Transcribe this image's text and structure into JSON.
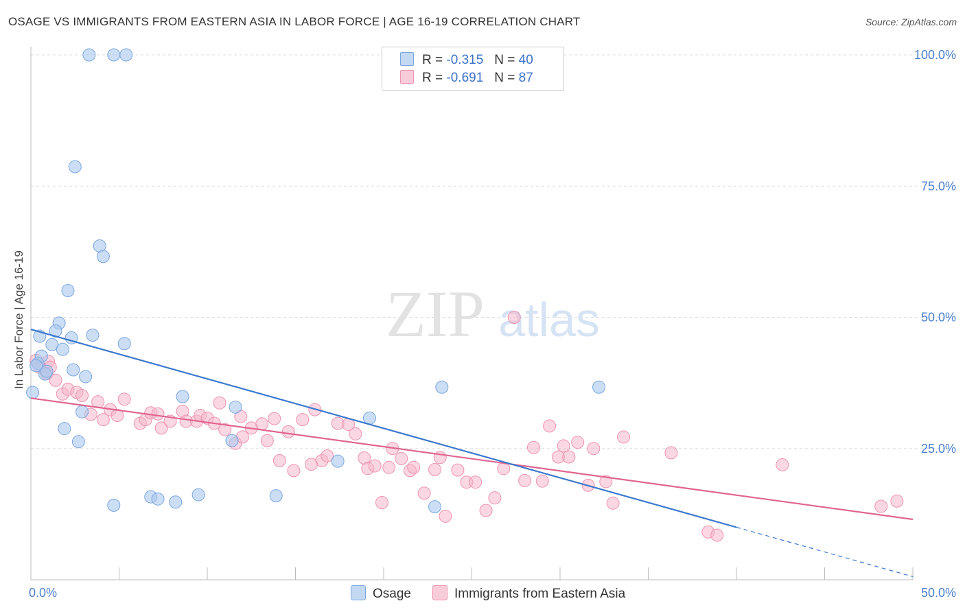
{
  "header": {
    "title": "OSAGE VS IMMIGRANTS FROM EASTERN ASIA IN LABOR FORCE | AGE 16-19 CORRELATION CHART",
    "source": "Source: ZipAtlas.com"
  },
  "watermark": {
    "zip": "ZIP",
    "atlas": "atlas"
  },
  "legend": [
    {
      "r_label": "R =",
      "r_value": "-0.315",
      "n_label": "N =",
      "n_value": "40"
    },
    {
      "r_label": "R =",
      "r_value": "-0.691",
      "n_label": "N =",
      "n_value": "87"
    }
  ],
  "bottom_legend": [
    "Osage",
    "Immigrants from Eastern Asia"
  ],
  "colors": {
    "osage_fill": "#aac8ef",
    "osage_stroke": "#7aa6e0",
    "osage_line": "#3a78cc",
    "imm_fill": "#f6b7cb",
    "imm_stroke": "#ee93b0",
    "imm_line": "#e06590",
    "tick_text": "#4a7fcc",
    "grid": "#dddddd"
  },
  "chart_data": {
    "type": "scatter",
    "ylabel": "In Labor Force | Age 16-19",
    "xlim": [
      0,
      50
    ],
    "ylim": [
      0,
      100
    ],
    "x_tick_labels": [
      "0.0%",
      "50.0%"
    ],
    "y_ticks": [
      25,
      50,
      75,
      100
    ],
    "y_tick_labels": [
      "25.0%",
      "50.0%",
      "75.0%",
      "100.0%"
    ],
    "grid": true,
    "legend_position": "top-center",
    "series": [
      {
        "name": "Osage",
        "trend": {
          "x0": 0,
          "y0": 47.7,
          "x1": 40,
          "y1": 10.0,
          "dashed_to_x": 50,
          "dashed_to_y": 0.6
        },
        "points": [
          [
            3.3,
            100
          ],
          [
            4.7,
            100
          ],
          [
            5.4,
            100
          ],
          [
            2.5,
            78.7
          ],
          [
            3.9,
            63.6
          ],
          [
            4.1,
            61.6
          ],
          [
            2.1,
            55.1
          ],
          [
            1.6,
            48.9
          ],
          [
            0.5,
            46.4
          ],
          [
            1.4,
            47.4
          ],
          [
            2.3,
            46.1
          ],
          [
            3.5,
            46.6
          ],
          [
            1.2,
            44.8
          ],
          [
            1.8,
            43.9
          ],
          [
            0.6,
            42.6
          ],
          [
            0.4,
            41.2
          ],
          [
            0.3,
            40.8
          ],
          [
            0.8,
            39.2
          ],
          [
            0.9,
            39.7
          ],
          [
            2.4,
            40.0
          ],
          [
            3.1,
            38.7
          ],
          [
            0.1,
            35.7
          ],
          [
            5.3,
            45.0
          ],
          [
            8.6,
            34.9
          ],
          [
            11.6,
            32.9
          ],
          [
            2.9,
            32.0
          ],
          [
            19.2,
            30.8
          ],
          [
            1.9,
            28.8
          ],
          [
            2.7,
            26.3
          ],
          [
            11.4,
            26.5
          ],
          [
            23.3,
            36.7
          ],
          [
            32.2,
            36.7
          ],
          [
            17.4,
            22.6
          ],
          [
            4.7,
            14.2
          ],
          [
            6.8,
            15.8
          ],
          [
            7.2,
            15.4
          ],
          [
            8.2,
            14.8
          ],
          [
            9.5,
            16.2
          ],
          [
            13.9,
            16.0
          ],
          [
            22.9,
            13.9
          ]
        ]
      },
      {
        "name": "Immigrants from Eastern Asia",
        "trend": {
          "x0": 0,
          "y0": 34.6,
          "x1": 50,
          "y1": 11.5
        },
        "points": [
          [
            0.3,
            41.8
          ],
          [
            0.5,
            40.5
          ],
          [
            1.0,
            41.6
          ],
          [
            1.1,
            40.5
          ],
          [
            0.9,
            39.3
          ],
          [
            1.4,
            38.0
          ],
          [
            1.8,
            35.4
          ],
          [
            2.1,
            36.3
          ],
          [
            2.6,
            35.7
          ],
          [
            2.9,
            35.1
          ],
          [
            3.8,
            33.9
          ],
          [
            5.3,
            34.4
          ],
          [
            3.4,
            31.5
          ],
          [
            4.1,
            30.5
          ],
          [
            4.5,
            32.4
          ],
          [
            4.9,
            31.3
          ],
          [
            6.2,
            29.8
          ],
          [
            6.5,
            30.5
          ],
          [
            6.8,
            31.8
          ],
          [
            7.2,
            31.6
          ],
          [
            7.4,
            28.9
          ],
          [
            7.9,
            30.2
          ],
          [
            8.6,
            32.1
          ],
          [
            8.8,
            30.2
          ],
          [
            9.4,
            30.2
          ],
          [
            9.6,
            31.3
          ],
          [
            10.0,
            30.8
          ],
          [
            10.4,
            29.8
          ],
          [
            10.7,
            33.7
          ],
          [
            11.0,
            28.6
          ],
          [
            11.6,
            26.0
          ],
          [
            11.9,
            31.1
          ],
          [
            12.0,
            27.2
          ],
          [
            12.5,
            28.9
          ],
          [
            13.1,
            29.7
          ],
          [
            13.4,
            26.5
          ],
          [
            13.8,
            30.7
          ],
          [
            14.1,
            22.7
          ],
          [
            14.6,
            28.2
          ],
          [
            14.9,
            20.8
          ],
          [
            15.4,
            30.5
          ],
          [
            15.9,
            22.0
          ],
          [
            16.1,
            32.4
          ],
          [
            16.5,
            22.7
          ],
          [
            16.8,
            23.6
          ],
          [
            17.4,
            29.8
          ],
          [
            18.0,
            29.6
          ],
          [
            18.4,
            27.8
          ],
          [
            18.9,
            23.2
          ],
          [
            19.1,
            21.2
          ],
          [
            19.5,
            21.7
          ],
          [
            19.9,
            14.7
          ],
          [
            20.3,
            21.4
          ],
          [
            20.5,
            25.0
          ],
          [
            21.0,
            23.1
          ],
          [
            21.5,
            20.8
          ],
          [
            21.7,
            21.4
          ],
          [
            22.3,
            16.5
          ],
          [
            22.9,
            21.0
          ],
          [
            23.2,
            23.3
          ],
          [
            23.5,
            12.1
          ],
          [
            24.2,
            20.9
          ],
          [
            24.7,
            18.6
          ],
          [
            25.2,
            18.6
          ],
          [
            25.8,
            13.2
          ],
          [
            26.3,
            15.6
          ],
          [
            26.8,
            21.2
          ],
          [
            27.4,
            50.0
          ],
          [
            28.0,
            18.9
          ],
          [
            28.5,
            25.2
          ],
          [
            29.0,
            18.8
          ],
          [
            29.4,
            29.3
          ],
          [
            29.9,
            23.4
          ],
          [
            30.2,
            25.5
          ],
          [
            30.5,
            23.4
          ],
          [
            31.0,
            26.2
          ],
          [
            31.6,
            18.0
          ],
          [
            31.9,
            25.0
          ],
          [
            32.6,
            18.7
          ],
          [
            33.0,
            14.6
          ],
          [
            33.6,
            27.2
          ],
          [
            36.3,
            24.2
          ],
          [
            38.4,
            9.1
          ],
          [
            38.9,
            8.5
          ],
          [
            42.6,
            21.9
          ],
          [
            48.2,
            14.0
          ],
          [
            49.1,
            15.0
          ]
        ]
      }
    ]
  }
}
